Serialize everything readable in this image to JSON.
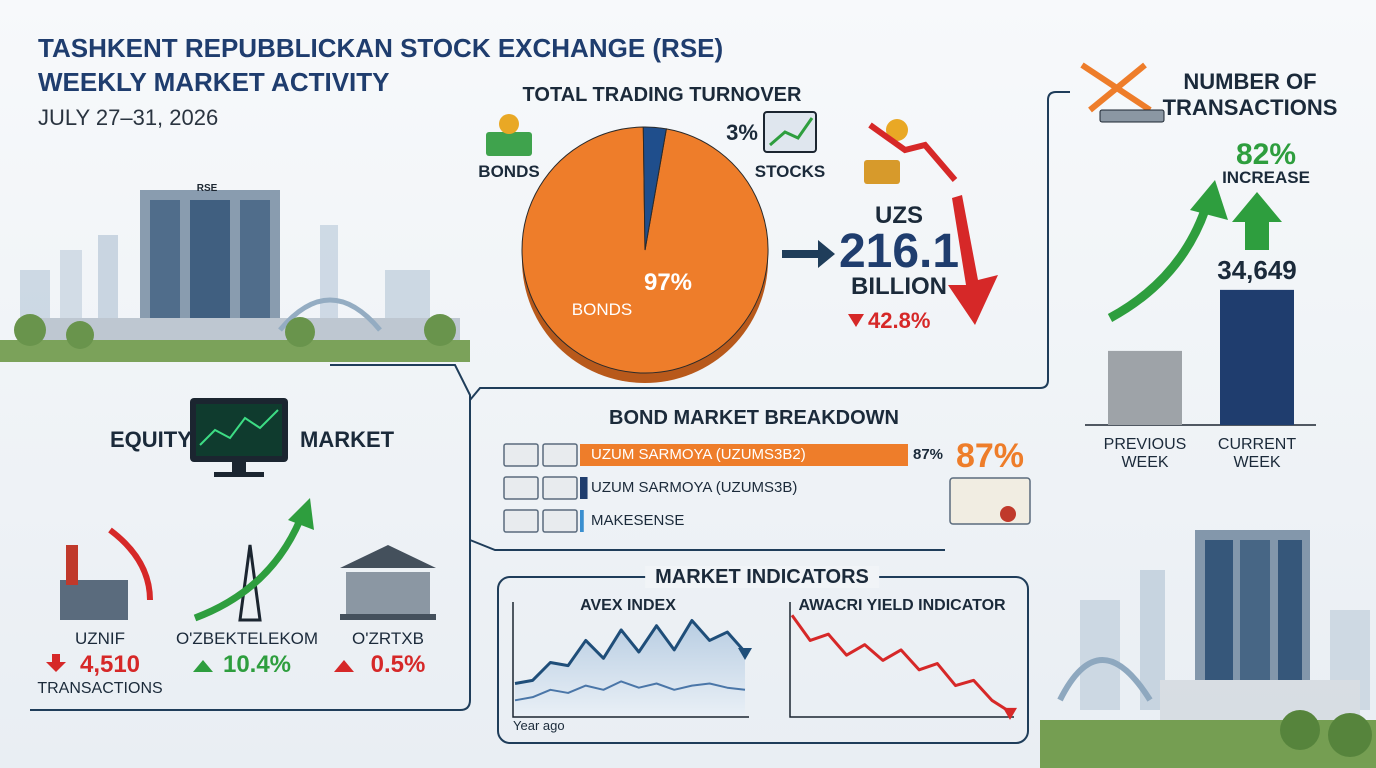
{
  "header": {
    "title_line1": "TASHKENT REPUBBLICKAN STOCK EXCHANGE (RSE)",
    "title_line2": "WEEKLY MARKET ACTIVITY",
    "date": "JULY 27–31, 2026",
    "building_sign": "RSE"
  },
  "summary": {
    "currency": "UZS",
    "amount": 216.1,
    "unit": "BILLION",
    "change": "42.8%"
  },
  "transactions": {
    "title_line1": "NUMBER OF",
    "title_line2": "TRANSACTIONS",
    "change": "82%",
    "change_note": "INCREASE"
  },
  "equity": {
    "title_left": "EQUITY",
    "title_right": "MARKET",
    "items": [
      {
        "name": "UZNIF",
        "change": "4,510",
        "note": "TRANSACTIONS",
        "direction": "down",
        "color": "#d62828"
      },
      {
        "name": "O'ZBEKTELEKOM",
        "change": "10.4%",
        "direction": "up",
        "color": "#2e9e3e"
      },
      {
        "name": "O'ZRTXB",
        "change": "0.5%",
        "direction": "up",
        "color": "#d62828"
      }
    ]
  },
  "indicators_title": "MARKET INDICATORS",
  "chart_data": [
    {
      "type": "pie",
      "title": "TOTAL TRADING TURNOVER",
      "categories": [
        "BONDS",
        "STOCKS"
      ],
      "values": [
        97,
        3
      ],
      "value_labels": [
        "97%",
        "3%"
      ],
      "colors": [
        "#ee7d2a",
        "#1f4e8c"
      ]
    },
    {
      "type": "bar",
      "categories": [
        "PREVIOUS WEEK",
        "CURRENT WEEK"
      ],
      "values": [
        19000,
        34649
      ],
      "value_labels": [
        null,
        "34,649"
      ],
      "colors": [
        "#9ea3a8",
        "#1f3d6e"
      ],
      "ylim": [
        0,
        40000
      ]
    },
    {
      "type": "hbar",
      "title": "BOND MARKET BREAKDOWN",
      "categories": [
        "UZUM SARMOYA (UZUMS3B2)",
        "UZUM SARMOYA (UZUMS3B)",
        "MAKESENSE"
      ],
      "values": [
        87,
        2,
        1
      ],
      "value_labels": [
        "87%",
        null,
        null
      ],
      "colors": [
        "#ee7d2a",
        "#1f3d6e",
        "#3a8fd0"
      ],
      "xlim": [
        0,
        100
      ]
    },
    {
      "type": "line",
      "title": "AVEX INDEX",
      "note": "Year ago",
      "ylim": [
        0,
        100
      ],
      "series": [
        {
          "color": "#1f4e79",
          "values": [
            30,
            33,
            50,
            47,
            71,
            54,
            81,
            60,
            85,
            62,
            90,
            71,
            79,
            60
          ]
        },
        {
          "color": "#4a76a8",
          "values": [
            14,
            17,
            24,
            21,
            28,
            24,
            32,
            26,
            30,
            24,
            28,
            30,
            26,
            24
          ]
        }
      ]
    },
    {
      "type": "line",
      "title": "AWACRI YIELD INDICATOR",
      "ylim": [
        0,
        100
      ],
      "series": [
        {
          "color": "#d62828",
          "values": [
            95,
            71,
            77,
            57,
            67,
            52,
            62,
            43,
            49,
            28,
            33,
            14,
            3
          ]
        }
      ]
    }
  ]
}
